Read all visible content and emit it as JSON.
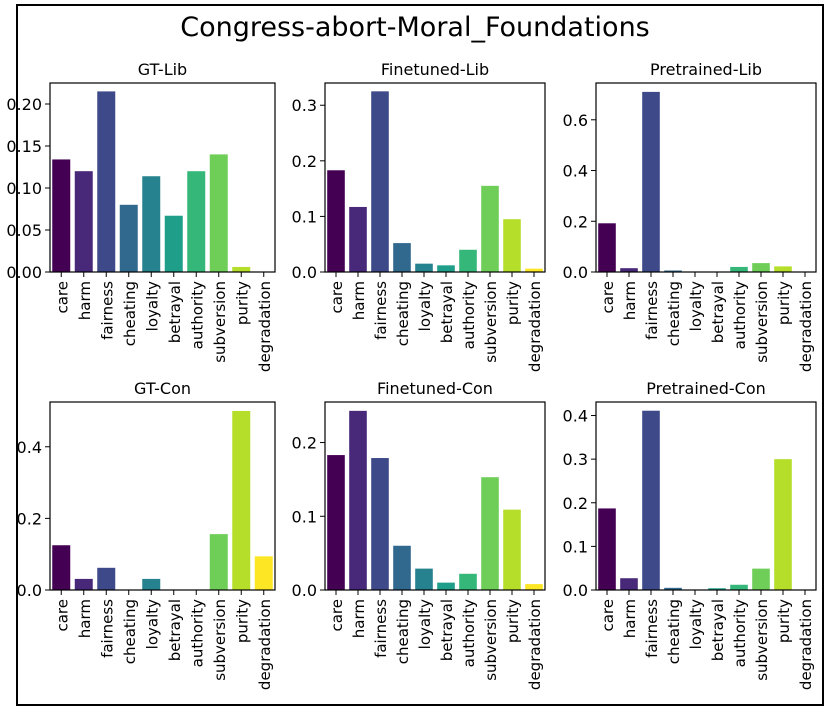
{
  "figure_title": "Congress-abort-Moral_Foundations",
  "chart_data": [
    {
      "type": "bar",
      "title": "GT-Lib",
      "categories": [
        "care",
        "harm",
        "fairness",
        "cheating",
        "loyalty",
        "betrayal",
        "authority",
        "subversion",
        "purity",
        "degradation"
      ],
      "values": [
        0.134,
        0.12,
        0.215,
        0.08,
        0.114,
        0.067,
        0.12,
        0.14,
        0.006,
        0.0
      ],
      "ylim": [
        0,
        0.225
      ],
      "yticks": [
        0.0,
        0.05,
        0.1,
        0.15,
        0.2
      ],
      "ytick_labels": [
        "0.00",
        "0.05",
        "0.10",
        "0.15",
        "0.20"
      ],
      "xlabel": "",
      "ylabel": ""
    },
    {
      "type": "bar",
      "title": "Finetuned-Lib",
      "categories": [
        "care",
        "harm",
        "fairness",
        "cheating",
        "loyalty",
        "betrayal",
        "authority",
        "subversion",
        "purity",
        "degradation"
      ],
      "values": [
        0.183,
        0.117,
        0.325,
        0.052,
        0.015,
        0.012,
        0.04,
        0.155,
        0.095,
        0.006
      ],
      "ylim": [
        0,
        0.34
      ],
      "yticks": [
        0.0,
        0.1,
        0.2,
        0.3
      ],
      "ytick_labels": [
        "0.0",
        "0.1",
        "0.2",
        "0.3"
      ],
      "xlabel": "",
      "ylabel": ""
    },
    {
      "type": "bar",
      "title": "Pretrained-Lib",
      "categories": [
        "care",
        "harm",
        "fairness",
        "cheating",
        "loyalty",
        "betrayal",
        "authority",
        "subversion",
        "purity",
        "degradation"
      ],
      "values": [
        0.192,
        0.015,
        0.71,
        0.006,
        0.0,
        0.0,
        0.02,
        0.035,
        0.022,
        0.0
      ],
      "ylim": [
        0,
        0.745
      ],
      "yticks": [
        0.0,
        0.2,
        0.4,
        0.6
      ],
      "ytick_labels": [
        "0.0",
        "0.2",
        "0.4",
        "0.6"
      ],
      "xlabel": "",
      "ylabel": ""
    },
    {
      "type": "bar",
      "title": "GT-Con",
      "categories": [
        "care",
        "harm",
        "fairness",
        "cheating",
        "loyalty",
        "betrayal",
        "authority",
        "subversion",
        "purity",
        "degradation"
      ],
      "values": [
        0.125,
        0.031,
        0.062,
        0.0,
        0.031,
        0.0,
        0.0,
        0.156,
        0.5,
        0.094
      ],
      "ylim": [
        0,
        0.525
      ],
      "yticks": [
        0.0,
        0.2,
        0.4
      ],
      "ytick_labels": [
        "0.0",
        "0.2",
        "0.4"
      ],
      "xlabel": "",
      "ylabel": ""
    },
    {
      "type": "bar",
      "title": "Finetuned-Con",
      "categories": [
        "care",
        "harm",
        "fairness",
        "cheating",
        "loyalty",
        "betrayal",
        "authority",
        "subversion",
        "purity",
        "degradation"
      ],
      "values": [
        0.183,
        0.243,
        0.179,
        0.06,
        0.029,
        0.01,
        0.022,
        0.153,
        0.109,
        0.008
      ],
      "ylim": [
        0,
        0.255
      ],
      "yticks": [
        0.0,
        0.1,
        0.2
      ],
      "ytick_labels": [
        "0.0",
        "0.1",
        "0.2"
      ],
      "xlabel": "",
      "ylabel": ""
    },
    {
      "type": "bar",
      "title": "Pretrained-Con",
      "categories": [
        "care",
        "harm",
        "fairness",
        "cheating",
        "loyalty",
        "betrayal",
        "authority",
        "subversion",
        "purity",
        "degradation"
      ],
      "values": [
        0.187,
        0.027,
        0.411,
        0.005,
        0.0,
        0.004,
        0.012,
        0.049,
        0.3,
        0.0
      ],
      "ylim": [
        0,
        0.431
      ],
      "yticks": [
        0.0,
        0.1,
        0.2,
        0.3,
        0.4
      ],
      "ytick_labels": [
        "0.0",
        "0.1",
        "0.2",
        "0.3",
        "0.4"
      ],
      "xlabel": "",
      "ylabel": ""
    }
  ],
  "colors": [
    "#440154",
    "#482878",
    "#3e4989",
    "#31688e",
    "#26828e",
    "#1f9e89",
    "#35b779",
    "#6ece58",
    "#b5de2b",
    "#fde725"
  ]
}
